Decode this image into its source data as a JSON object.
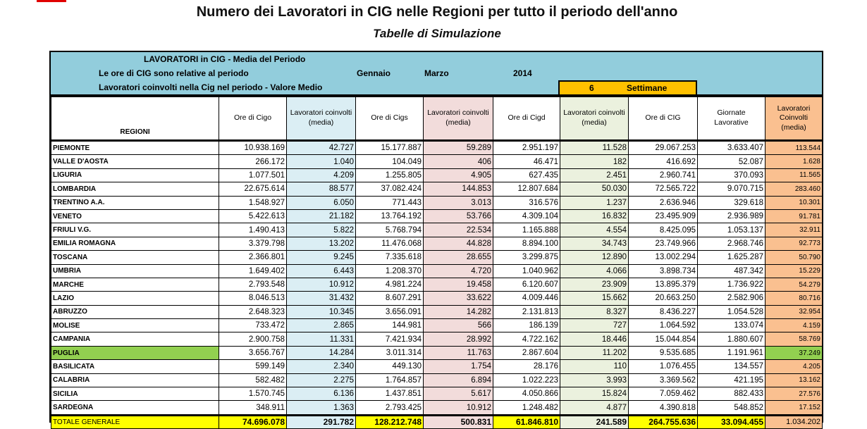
{
  "title": "Numero dei Lavoratori in CIG nelle Regioni per tutto il periodo dell'anno",
  "subtitle": "Tabelle di Simulazione",
  "banner": {
    "line1": "LAVORATORI   in   CIG   -   Media del Periodo",
    "line2": "Le ore di CIG sono relative al periodo",
    "month_from": "Gennaio",
    "month_to": "Marzo",
    "year": "2014",
    "line3": "Lavoratori coinvolti nella Cig nel periodo  -  Valore Medio",
    "weeks": "6",
    "weeks_label": "Settimane"
  },
  "columns": [
    "REGIONI",
    "Ore di Cigo",
    "Lavoratori coinvolti (media)",
    "Ore di Cigs",
    "Lavoratori coinvolti (media)",
    "Ore di Cigd",
    "Lavoratori coinvolti (media)",
    "Ore di CIG",
    "Giornate Lavorative",
    "Lavoratori Coinvolti (media)"
  ],
  "rows": [
    [
      "PIEMONTE",
      "10.938.169",
      "42.727",
      "15.177.887",
      "59.289",
      "2.951.197",
      "11.528",
      "29.067.253",
      "3.633.407",
      "113.544"
    ],
    [
      "VALLE D'AOSTA",
      "266.172",
      "1.040",
      "104.049",
      "406",
      "46.471",
      "182",
      "416.692",
      "52.087",
      "1.628"
    ],
    [
      "LIGURIA",
      "1.077.501",
      "4.209",
      "1.255.805",
      "4.905",
      "627.435",
      "2.451",
      "2.960.741",
      "370.093",
      "11.565"
    ],
    [
      "LOMBARDIA",
      "22.675.614",
      "88.577",
      "37.082.424",
      "144.853",
      "12.807.684",
      "50.030",
      "72.565.722",
      "9.070.715",
      "283.460"
    ],
    [
      "TRENTINO A.A.",
      "1.548.927",
      "6.050",
      "771.443",
      "3.013",
      "316.576",
      "1.237",
      "2.636.946",
      "329.618",
      "10.301"
    ],
    [
      "VENETO",
      "5.422.613",
      "21.182",
      "13.764.192",
      "53.766",
      "4.309.104",
      "16.832",
      "23.495.909",
      "2.936.989",
      "91.781"
    ],
    [
      "FRIULI V.G.",
      "1.490.413",
      "5.822",
      "5.768.794",
      "22.534",
      "1.165.888",
      "4.554",
      "8.425.095",
      "1.053.137",
      "32.911"
    ],
    [
      "EMILIA ROMAGNA",
      "3.379.798",
      "13.202",
      "11.476.068",
      "44.828",
      "8.894.100",
      "34.743",
      "23.749.966",
      "2.968.746",
      "92.773"
    ],
    [
      "TOSCANA",
      "2.366.801",
      "9.245",
      "7.335.618",
      "28.655",
      "3.299.875",
      "12.890",
      "13.002.294",
      "1.625.287",
      "50.790"
    ],
    [
      "UMBRIA",
      "1.649.402",
      "6.443",
      "1.208.370",
      "4.720",
      "1.040.962",
      "4.066",
      "3.898.734",
      "487.342",
      "15.229"
    ],
    [
      "MARCHE",
      "2.793.548",
      "10.912",
      "4.981.224",
      "19.458",
      "6.120.607",
      "23.909",
      "13.895.379",
      "1.736.922",
      "54.279"
    ],
    [
      "LAZIO",
      "8.046.513",
      "31.432",
      "8.607.291",
      "33.622",
      "4.009.446",
      "15.662",
      "20.663.250",
      "2.582.906",
      "80.716"
    ],
    [
      "ABRUZZO",
      "2.648.323",
      "10.345",
      "3.656.091",
      "14.282",
      "2.131.813",
      "8.327",
      "8.436.227",
      "1.054.528",
      "32.954"
    ],
    [
      "MOLISE",
      "733.472",
      "2.865",
      "144.981",
      "566",
      "186.139",
      "727",
      "1.064.592",
      "133.074",
      "4.159"
    ],
    [
      "CAMPANIA",
      "2.900.758",
      "11.331",
      "7.421.934",
      "28.992",
      "4.722.162",
      "18.446",
      "15.044.854",
      "1.880.607",
      "58.769"
    ],
    [
      "PUGLIA",
      "3.656.767",
      "14.284",
      "3.011.314",
      "11.763",
      "2.867.604",
      "11.202",
      "9.535.685",
      "1.191.961",
      "37.249"
    ],
    [
      "BASILICATA",
      "599.149",
      "2.340",
      "449.130",
      "1.754",
      "28.176",
      "110",
      "1.076.455",
      "134.557",
      "4.205"
    ],
    [
      "CALABRIA",
      "582.482",
      "2.275",
      "1.764.857",
      "6.894",
      "1.022.223",
      "3.993",
      "3.369.562",
      "421.195",
      "13.162"
    ],
    [
      "SICILIA",
      "1.570.745",
      "6.136",
      "1.437.851",
      "5.617",
      "4.050.866",
      "15.824",
      "7.059.462",
      "882.433",
      "27.576"
    ],
    [
      "SARDEGNA",
      "348.911",
      "1.363",
      "2.793.425",
      "10.912",
      "1.248.482",
      "4.877",
      "4.390.818",
      "548.852",
      "17.152"
    ]
  ],
  "highlighted_region": "PUGLIA",
  "total": [
    "TOTALE GENERALE",
    "74.696.078",
    "291.782",
    "128.212.748",
    "500.831",
    "61.846.810",
    "241.589",
    "264.755.636",
    "33.094.455",
    "1.034.202"
  ]
}
